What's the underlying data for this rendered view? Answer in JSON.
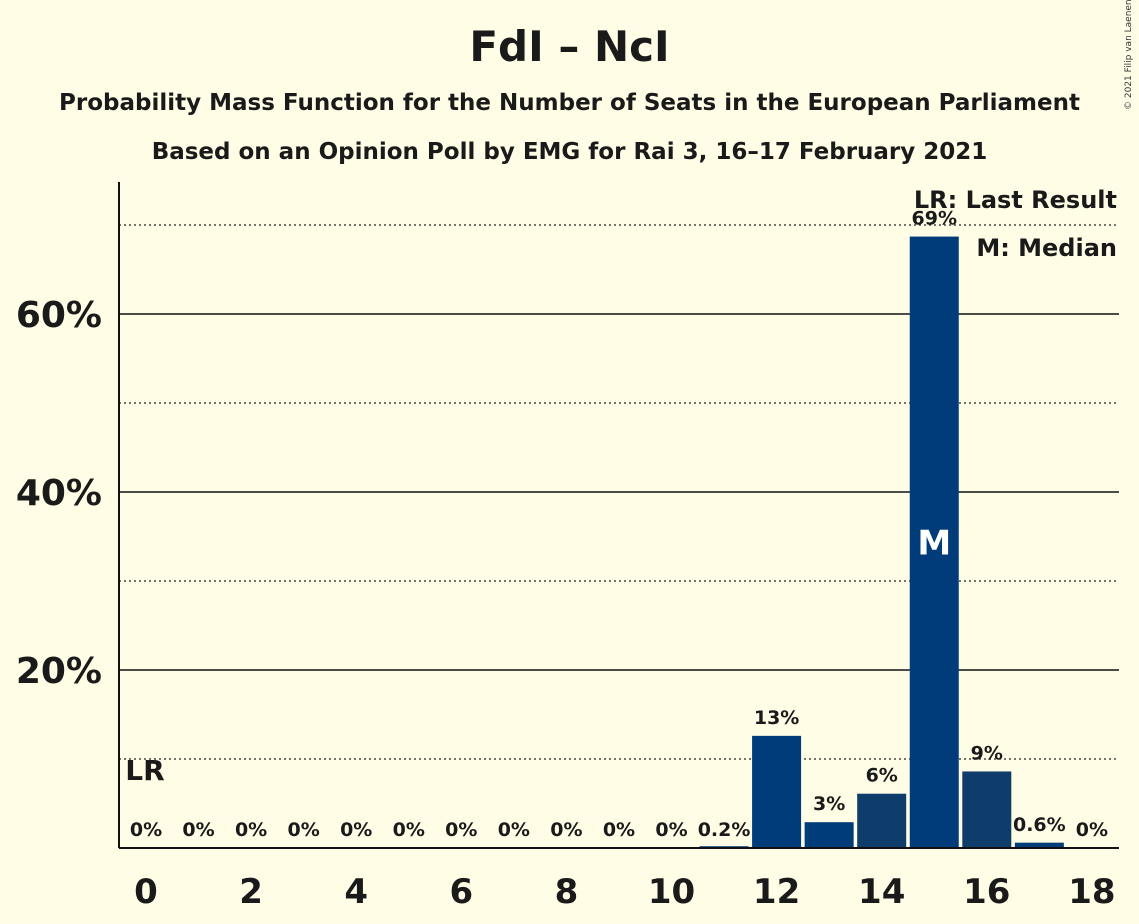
{
  "copyright": "© 2021 Filip van Laenen",
  "legend": {
    "last_result": "LR: Last Result",
    "median": "M: Median"
  },
  "chart_data": {
    "type": "bar",
    "title": "FdI – NcI",
    "subtitle_1": "Probability Mass Function for the Number of Seats in the European Parliament",
    "subtitle_2": "Based on an Opinion Poll by EMG for Rai 3, 16–17 February 2021",
    "xlabel": "",
    "ylabel": "",
    "x": [
      0,
      1,
      2,
      3,
      4,
      5,
      6,
      7,
      8,
      9,
      10,
      11,
      12,
      13,
      14,
      15,
      16,
      17,
      18
    ],
    "values": [
      0,
      0,
      0,
      0,
      0,
      0,
      0,
      0,
      0,
      0,
      0,
      0.2,
      12.6,
      2.9,
      6.1,
      68.7,
      8.6,
      0.6,
      0
    ],
    "value_labels": [
      "0%",
      "0%",
      "0%",
      "0%",
      "0%",
      "0%",
      "0%",
      "0%",
      "0%",
      "0%",
      "0%",
      "0.2%",
      "13%",
      "3%",
      "6%",
      "69%",
      "9%",
      "0.6%",
      "0%"
    ],
    "x_ticks": [
      "0",
      "2",
      "4",
      "6",
      "8",
      "10",
      "12",
      "14",
      "16",
      "18"
    ],
    "x_tick_values": [
      0,
      2,
      4,
      6,
      8,
      10,
      12,
      14,
      16,
      18
    ],
    "y_ticks": [
      "20%",
      "40%",
      "60%"
    ],
    "y_tick_values": [
      20,
      40,
      60
    ],
    "ylim": [
      0,
      75
    ],
    "grid": true,
    "legend_position": "top-right",
    "last_result_seat": 0,
    "last_result_label": "LR",
    "median_seat": 15,
    "median_label": "M",
    "bar_color": "#003b7a",
    "bar_color_alt": "#0f3d6b"
  }
}
